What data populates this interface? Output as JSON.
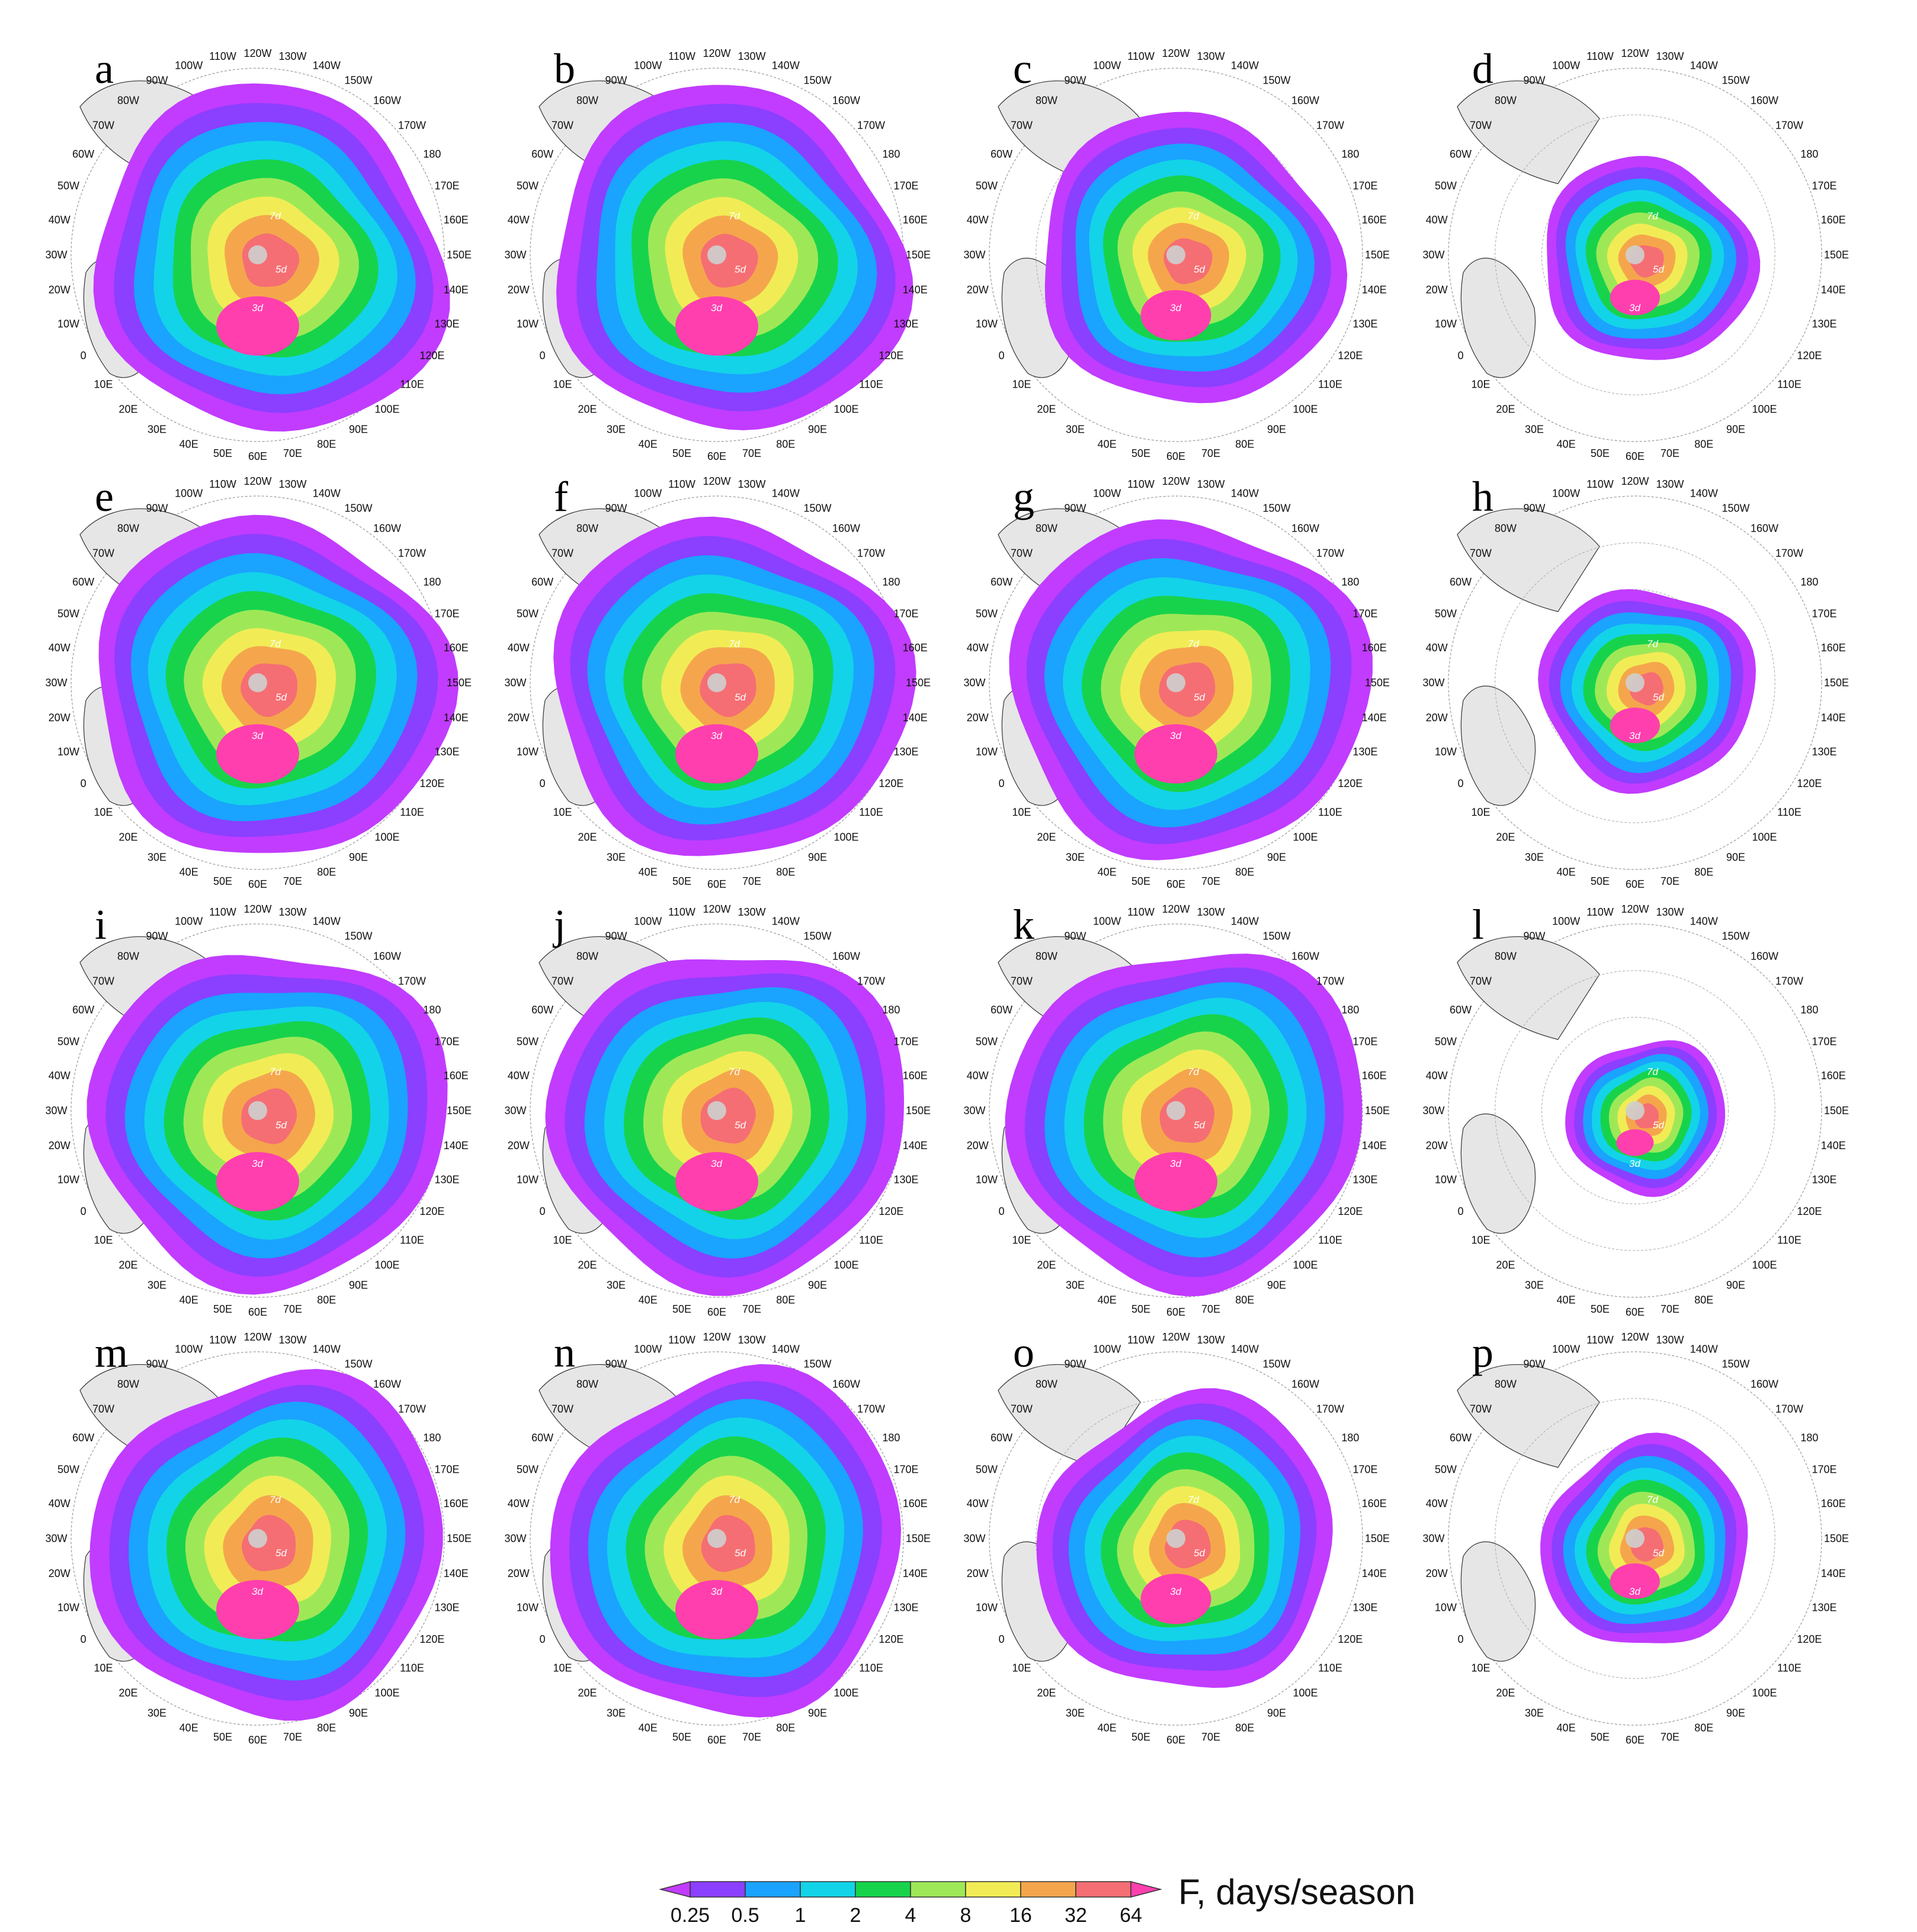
{
  "panels": [
    {
      "letter": "a",
      "pattern": "full"
    },
    {
      "letter": "b",
      "pattern": "full"
    },
    {
      "letter": "c",
      "pattern": "reduced"
    },
    {
      "letter": "d",
      "pattern": "sparse"
    },
    {
      "letter": "e",
      "pattern": "full"
    },
    {
      "letter": "f",
      "pattern": "full"
    },
    {
      "letter": "g",
      "pattern": "full"
    },
    {
      "letter": "h",
      "pattern": "sparse"
    },
    {
      "letter": "i",
      "pattern": "full"
    },
    {
      "letter": "j",
      "pattern": "full"
    },
    {
      "letter": "k",
      "pattern": "full"
    },
    {
      "letter": "l",
      "pattern": "minimal"
    },
    {
      "letter": "m",
      "pattern": "full"
    },
    {
      "letter": "n",
      "pattern": "full"
    },
    {
      "letter": "o",
      "pattern": "reduced"
    },
    {
      "letter": "p",
      "pattern": "sparse"
    }
  ],
  "longitude_labels": [
    "120W",
    "130W",
    "140W",
    "150W",
    "160W",
    "170W",
    "180",
    "170E",
    "160E",
    "150E",
    "140E",
    "130E",
    "120E",
    "110E",
    "100E",
    "90E",
    "80E",
    "70E",
    "60E",
    "50E",
    "40E",
    "30E",
    "20E",
    "10E",
    "0",
    "10W",
    "20W",
    "30W",
    "40W",
    "50W",
    "60W",
    "70W",
    "80W",
    "90W",
    "100W",
    "110W"
  ],
  "isoline_labels": [
    "7d",
    "5d",
    "3d"
  ],
  "colorbar": {
    "ticks": [
      "0.25",
      "0.5",
      "1",
      "2",
      "4",
      "8",
      "16",
      "32",
      "64"
    ],
    "title": "F, days/season",
    "colors": [
      "#c13cff",
      "#8b3fff",
      "#1aa3ff",
      "#13d3e8",
      "#17d34b",
      "#9ee857",
      "#f1ec55",
      "#f5a64c",
      "#f56e73",
      "#ff3fae"
    ]
  }
}
